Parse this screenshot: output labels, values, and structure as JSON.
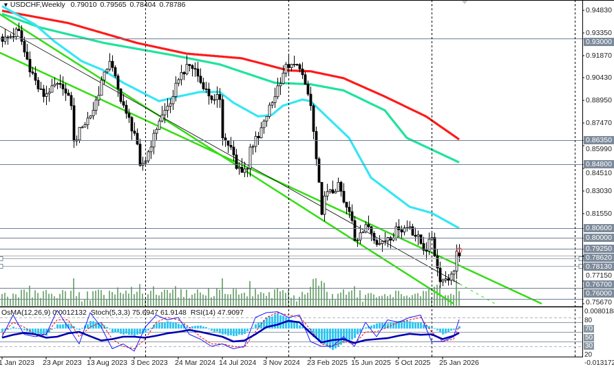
{
  "header": {
    "symbol_timeframe": "USDCHF,Weekly",
    "open": "0.79010",
    "high": "0.79565",
    "low": "0.78404",
    "close": "0.78786"
  },
  "indicator_header": {
    "osma_label": "OsMA(12,26,9)",
    "osma_value": "0.0012132",
    "stoch_label": "Stoch(5,3,3)",
    "stoch_k": "75.6947",
    "stoch_d": "61.9148",
    "rsi_label": "RSI(14)",
    "rsi_value": "47.9097"
  },
  "price_axis_ticks": [
    "0.94830",
    "0.93350",
    "0.91870",
    "0.90430",
    "0.88950",
    "0.87470",
    "0.85990",
    "0.84510",
    "0.83030",
    "0.81550",
    "0.77150",
    "0.75670"
  ],
  "price_levels": [
    "0.93000",
    "0.86350",
    "0.84800",
    "0.80600",
    "0.80000",
    "0.79250",
    "0.78620",
    "0.78130",
    "0.76700",
    "0.76000"
  ],
  "indicator_axis": {
    "max": "0.0080188",
    "min": "-0.013172",
    "levels": [
      "80",
      "70",
      "50",
      "30",
      "20"
    ]
  },
  "time_axis": [
    "1 Jan 2023",
    "23 Apr 2023",
    "13 Aug 2023",
    "3 Dec 2023",
    "24 Mar 2024",
    "14 Jul 2024",
    "3 Nov 2024",
    "23 Feb 2025",
    "15 Jun 2025",
    "5 Oct 2025",
    "25 Jan 2026"
  ],
  "colors": {
    "ma_red": "#ff1a1a",
    "ma_green": "#1fe39c",
    "ma_cyan": "#36e6f5",
    "channel": "#33dd11",
    "level_line": "#6e7f92",
    "osma": "#33c6f2",
    "rsi": "#0000b4",
    "stoch_main": "#1a1aff",
    "stoch_signal": "#ff0000",
    "volume": "#2a7a2a"
  },
  "chart_data": [
    {
      "type": "candlestick",
      "symbol": "USDCHF",
      "timeframe": "Weekly",
      "ylim": [
        0.7567,
        0.9483
      ],
      "close_anchors": [
        [
          "2023-01-01",
          0.928
        ],
        [
          "2023-02-12",
          0.935
        ],
        [
          "2023-02-26",
          0.921
        ],
        [
          "2023-04-02",
          0.897
        ],
        [
          "2023-04-16",
          0.892
        ],
        [
          "2023-05-07",
          0.899
        ],
        [
          "2023-06-04",
          0.897
        ],
        [
          "2023-06-25",
          0.886
        ],
        [
          "2023-07-02",
          0.863
        ],
        [
          "2023-07-23",
          0.872
        ],
        [
          "2023-08-20",
          0.883
        ],
        [
          "2023-09-17",
          0.908
        ],
        [
          "2023-10-01",
          0.915
        ],
        [
          "2023-10-22",
          0.897
        ],
        [
          "2023-11-12",
          0.881
        ],
        [
          "2023-12-03",
          0.868
        ],
        [
          "2023-12-17",
          0.847
        ],
        [
          "2023-12-31",
          0.85
        ],
        [
          "2024-01-21",
          0.868
        ],
        [
          "2024-02-04",
          0.876
        ],
        [
          "2024-03-10",
          0.892
        ],
        [
          "2024-03-24",
          0.903
        ],
        [
          "2024-04-14",
          0.913
        ],
        [
          "2024-05-05",
          0.91
        ],
        [
          "2024-05-26",
          0.897
        ],
        [
          "2024-06-23",
          0.89
        ],
        [
          "2024-07-07",
          0.89
        ],
        [
          "2024-07-14",
          0.865
        ],
        [
          "2024-08-04",
          0.859
        ],
        [
          "2024-08-18",
          0.845
        ],
        [
          "2024-09-15",
          0.845
        ],
        [
          "2024-09-22",
          0.859
        ],
        [
          "2024-10-13",
          0.865
        ],
        [
          "2024-10-27",
          0.876
        ],
        [
          "2024-11-17",
          0.888
        ],
        [
          "2024-12-01",
          0.899
        ],
        [
          "2024-12-22",
          0.913
        ],
        [
          "2025-01-05",
          0.913
        ],
        [
          "2025-01-26",
          0.91
        ],
        [
          "2025-02-09",
          0.9
        ],
        [
          "2025-02-23",
          0.886
        ],
        [
          "2025-03-23",
          0.815
        ],
        [
          "2025-03-30",
          0.827
        ],
        [
          "2025-04-20",
          0.829
        ],
        [
          "2025-05-04",
          0.836
        ],
        [
          "2025-05-18",
          0.823
        ],
        [
          "2025-06-08",
          0.811
        ],
        [
          "2025-06-15",
          0.798
        ],
        [
          "2025-06-29",
          0.803
        ],
        [
          "2025-07-20",
          0.807
        ],
        [
          "2025-08-17",
          0.796
        ],
        [
          "2025-09-07",
          0.8
        ],
        [
          "2025-10-05",
          0.805
        ],
        [
          "2025-11-02",
          0.807
        ],
        [
          "2025-11-30",
          0.796
        ],
        [
          "2025-12-14",
          0.791
        ],
        [
          "2025-12-28",
          0.8
        ],
        [
          "2026-01-11",
          0.78
        ],
        [
          "2026-01-18",
          0.771
        ],
        [
          "2026-02-01",
          0.773
        ],
        [
          "2026-02-15",
          0.776
        ],
        [
          "2026-02-22",
          0.778
        ],
        [
          "2026-03-01",
          0.791
        ]
      ],
      "last_candle": {
        "open": 0.7901,
        "high": 0.79565,
        "low": 0.78404,
        "close": 0.78786
      },
      "moving_averages": [
        {
          "color": "red",
          "points": [
            [
              "2023-01-01",
              0.948
            ],
            [
              "2023-06-18",
              0.94
            ],
            [
              "2023-12-10",
              0.927
            ],
            [
              "2024-04-14",
              0.92
            ],
            [
              "2024-09-01",
              0.917
            ],
            [
              "2024-12-29",
              0.909
            ],
            [
              "2025-02-23",
              0.9085
            ],
            [
              "2025-05-18",
              0.904
            ],
            [
              "2025-08-31",
              0.892
            ],
            [
              "2025-12-14",
              0.879
            ],
            [
              "2026-03-08",
              0.864
            ]
          ]
        },
        {
          "color": "green",
          "points": [
            [
              "2023-01-01",
              0.946
            ],
            [
              "2023-04-09",
              0.937
            ],
            [
              "2023-09-17",
              0.927
            ],
            [
              "2024-03-10",
              0.919
            ],
            [
              "2024-07-07",
              0.913
            ],
            [
              "2024-11-24",
              0.901
            ],
            [
              "2025-02-23",
              0.9
            ],
            [
              "2025-05-18",
              0.896
            ],
            [
              "2025-08-31",
              0.883
            ],
            [
              "2025-10-26",
              0.865
            ],
            [
              "2026-03-08",
              0.849
            ]
          ]
        },
        {
          "color": "cyan",
          "points": [
            [
              "2023-01-01",
              0.951
            ],
            [
              "2023-03-26",
              0.939
            ],
            [
              "2023-05-14",
              0.928
            ],
            [
              "2023-07-23",
              0.915
            ],
            [
              "2023-09-17",
              0.909
            ],
            [
              "2023-11-05",
              0.901
            ],
            [
              "2024-02-04",
              0.889
            ],
            [
              "2024-03-24",
              0.892
            ],
            [
              "2024-05-19",
              0.895
            ],
            [
              "2024-07-07",
              0.895
            ],
            [
              "2024-08-11",
              0.888
            ],
            [
              "2024-10-13",
              0.879
            ],
            [
              "2024-11-17",
              0.88
            ],
            [
              "2024-12-15",
              0.886
            ],
            [
              "2025-02-02",
              0.89
            ],
            [
              "2025-02-23",
              0.889
            ],
            [
              "2025-06-01",
              0.865
            ],
            [
              "2025-07-27",
              0.839
            ],
            [
              "2025-11-02",
              0.82
            ],
            [
              "2025-12-28",
              0.816
            ],
            [
              "2026-03-08",
              0.806
            ]
          ]
        }
      ],
      "channel": {
        "upper": [
          [
            "2022-05-08",
            0.9483
          ],
          [
            "2026-10-04",
            0.7567
          ]
        ],
        "middle": [
          [
            "2022-10-16",
            0.9483
          ],
          [
            "2026-06-07",
            0.7567
          ]
        ],
        "lower": [
          [
            "2022-12-25",
            0.946
          ],
          [
            "2026-02-22",
            0.7567
          ]
        ]
      }
    },
    {
      "type": "line",
      "dates": [
        "2023-01-01",
        "2023-01-29",
        "2023-02-26",
        "2023-03-26",
        "2023-04-23",
        "2023-05-21",
        "2023-06-18",
        "2023-07-16",
        "2023-08-13",
        "2023-09-10",
        "2023-10-08",
        "2023-11-05",
        "2023-12-03",
        "2023-12-31",
        "2024-01-28",
        "2024-02-25",
        "2024-03-24",
        "2024-04-21",
        "2024-05-19",
        "2024-06-16",
        "2024-07-14",
        "2024-08-11",
        "2024-09-08",
        "2024-10-06",
        "2024-11-03",
        "2024-12-01",
        "2024-12-29",
        "2025-01-26",
        "2025-02-23",
        "2025-03-23",
        "2025-04-20",
        "2025-05-18",
        "2025-06-15",
        "2025-07-13",
        "2025-08-10",
        "2025-09-07",
        "2025-10-05",
        "2025-11-02",
        "2025-11-30",
        "2025-12-28",
        "2026-01-25",
        "2026-02-22",
        "2026-03-08"
      ],
      "osma": [
        -0.002,
        0.001,
        -0.001,
        -0.003,
        -0.004,
        0.002,
        0.003,
        -0.001,
        0.004,
        0.003,
        -0.002,
        -0.003,
        -0.004,
        -0.002,
        0.003,
        0.004,
        0.003,
        0.001,
        0.002,
        -0.001,
        -0.003,
        -0.004,
        -0.003,
        0.002,
        0.006,
        0.008,
        0.006,
        0.002,
        -0.003,
        -0.008,
        -0.012,
        -0.008,
        -0.005,
        0.001,
        0.003,
        0.003,
        0.004,
        0.004,
        0.003,
        0.001,
        -0.003,
        -0.001,
        0.0012132
      ],
      "stoch_main": [
        40,
        85,
        45,
        40,
        45,
        95,
        60,
        25,
        90,
        60,
        15,
        25,
        10,
        60,
        85,
        75,
        80,
        45,
        35,
        20,
        25,
        15,
        20,
        80,
        90,
        92,
        80,
        85,
        30,
        20,
        20,
        40,
        20,
        70,
        40,
        75,
        70,
        80,
        85,
        30,
        30,
        40,
        75.6947
      ],
      "stoch_signal": [
        45,
        70,
        60,
        45,
        45,
        75,
        75,
        40,
        60,
        70,
        35,
        20,
        15,
        35,
        70,
        80,
        75,
        60,
        40,
        25,
        25,
        20,
        18,
        50,
        80,
        90,
        85,
        82,
        55,
        25,
        20,
        30,
        25,
        50,
        50,
        60,
        70,
        75,
        80,
        50,
        30,
        35,
        61.9148
      ],
      "rsi": [
        38,
        44,
        48,
        45,
        38,
        40,
        47,
        50,
        41,
        32,
        35,
        40,
        40,
        38,
        42,
        47,
        50,
        54,
        50,
        45,
        40,
        30,
        32,
        45,
        60,
        65,
        73,
        70,
        48,
        28,
        33,
        35,
        27,
        33,
        35,
        37,
        42,
        46,
        44,
        45,
        35,
        42,
        47.9097
      ],
      "levels": [
        80,
        70,
        50,
        30,
        20
      ],
      "osma_range": [
        -0.013172,
        0.0080188
      ],
      "stoch_rsi_range": [
        0,
        100
      ]
    }
  ]
}
